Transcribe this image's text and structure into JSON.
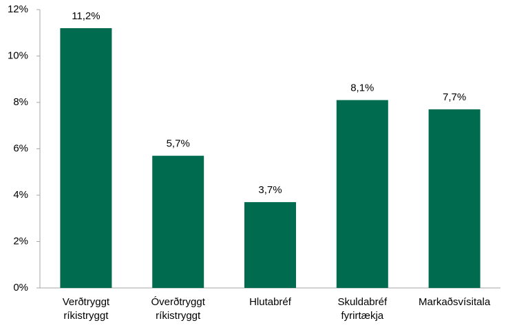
{
  "chart_data": {
    "type": "bar",
    "categories": [
      "Verðtryggt ríkistryggt",
      "Óverðtryggt ríkistryggt",
      "Hlutabréf",
      "Skuldabréf fyrirtækja",
      "Markaðsvísitala"
    ],
    "values": [
      11.2,
      5.7,
      3.7,
      8.1,
      7.7
    ],
    "value_labels": [
      "11,2%",
      "5,7%",
      "3,7%",
      "8,1%",
      "7,7%"
    ],
    "color": "#006b4f",
    "ylim": [
      0,
      12
    ],
    "yticks": [
      {
        "value": 0,
        "label": "0%"
      },
      {
        "value": 2,
        "label": "2%"
      },
      {
        "value": 4,
        "label": "4%"
      },
      {
        "value": 6,
        "label": "6%"
      },
      {
        "value": 8,
        "label": "8%"
      },
      {
        "value": 10,
        "label": "10%"
      },
      {
        "value": 12,
        "label": "12%"
      }
    ],
    "grid": false
  }
}
